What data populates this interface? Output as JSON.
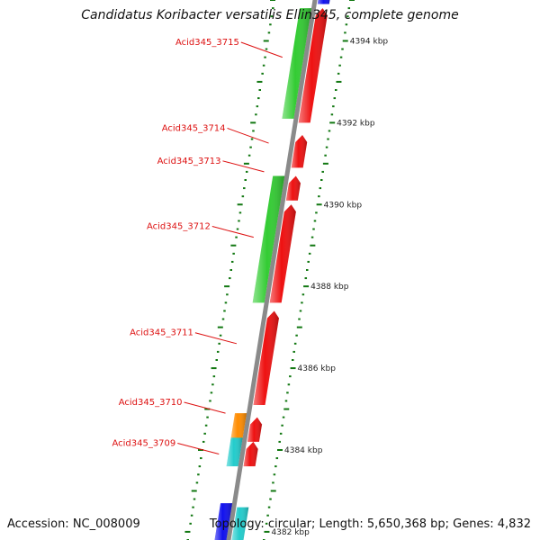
{
  "title": "Candidatus Koribacter versatilis Ellin345, complete genome",
  "accession_text": "Accession: NC_008009",
  "topology_text": "Topology: circular; Length: 5,650,368 bp; Genes: 4,832",
  "colors": {
    "backbone": "#8a8a8a",
    "cds_forward": "#ee1111",
    "rna": "#33cc33",
    "orange": "#ff8c00",
    "cyan": "#22cccc",
    "blue": "#1111ee",
    "tick": "#117711",
    "label": "#dd1111"
  },
  "scale": {
    "kbp_top": 4395.0,
    "kbp_bottom": 4381.8,
    "tick_labels": [
      {
        "kbp": 4394,
        "text": "4394 kbp"
      },
      {
        "kbp": 4392,
        "text": "4392 kbp"
      },
      {
        "kbp": 4390,
        "text": "4390 kbp"
      },
      {
        "kbp": 4388,
        "text": "4388 kbp"
      },
      {
        "kbp": 4386,
        "text": "4386 kbp"
      },
      {
        "kbp": 4384,
        "text": "4384 kbp"
      },
      {
        "kbp": 4382,
        "text": "4382 kbp"
      }
    ]
  },
  "features": [
    {
      "track": "outer",
      "color": "blue",
      "start": 4394.9,
      "end": 4395.3,
      "dir": 1
    },
    {
      "track": "inner",
      "color": "rna",
      "start": 4392.1,
      "end": 4394.8,
      "dir": 0
    },
    {
      "track": "outer",
      "color": "cds_forward",
      "start": 4392.0,
      "end": 4394.8,
      "dir": 1
    },
    {
      "track": "outer",
      "color": "cds_forward",
      "start": 4390.9,
      "end": 4391.7,
      "dir": 1
    },
    {
      "track": "inner",
      "color": "rna",
      "start": 4387.6,
      "end": 4390.7,
      "dir": 0
    },
    {
      "track": "outer",
      "color": "cds_forward",
      "start": 4390.1,
      "end": 4390.7,
      "dir": 1
    },
    {
      "track": "outer",
      "color": "cds_forward",
      "start": 4387.6,
      "end": 4390.0,
      "dir": 1
    },
    {
      "track": "outer",
      "color": "cds_forward",
      "start": 4385.1,
      "end": 4387.4,
      "dir": 1
    },
    {
      "track": "inner",
      "color": "orange",
      "start": 4384.2,
      "end": 4384.9,
      "dir": 0
    },
    {
      "track": "outer",
      "color": "cds_forward",
      "start": 4384.2,
      "end": 4384.8,
      "dir": 1
    },
    {
      "track": "inner",
      "color": "cyan",
      "start": 4383.6,
      "end": 4384.3,
      "dir": 0
    },
    {
      "track": "outer",
      "color": "cds_forward",
      "start": 4383.6,
      "end": 4384.2,
      "dir": 1
    },
    {
      "track": "inner",
      "color": "blue",
      "start": 4381.8,
      "end": 4382.7,
      "dir": 0
    },
    {
      "track": "outer",
      "color": "cyan",
      "start": 4381.8,
      "end": 4382.6,
      "dir": 0
    }
  ],
  "gene_labels": [
    {
      "text": "Acid345_3715",
      "kbp": 4393.9,
      "target_kbp": 4393.6
    },
    {
      "text": "Acid345_3714",
      "kbp": 4391.8,
      "target_kbp": 4391.5
    },
    {
      "text": "Acid345_3713",
      "kbp": 4391.0,
      "target_kbp": 4390.8
    },
    {
      "text": "Acid345_3712",
      "kbp": 4389.4,
      "target_kbp": 4389.2
    },
    {
      "text": "Acid345_3711",
      "kbp": 4386.8,
      "target_kbp": 4386.6
    },
    {
      "text": "Acid345_3710",
      "kbp": 4385.1,
      "target_kbp": 4384.9
    },
    {
      "text": "Acid345_3709",
      "kbp": 4384.1,
      "target_kbp": 4383.9
    }
  ]
}
